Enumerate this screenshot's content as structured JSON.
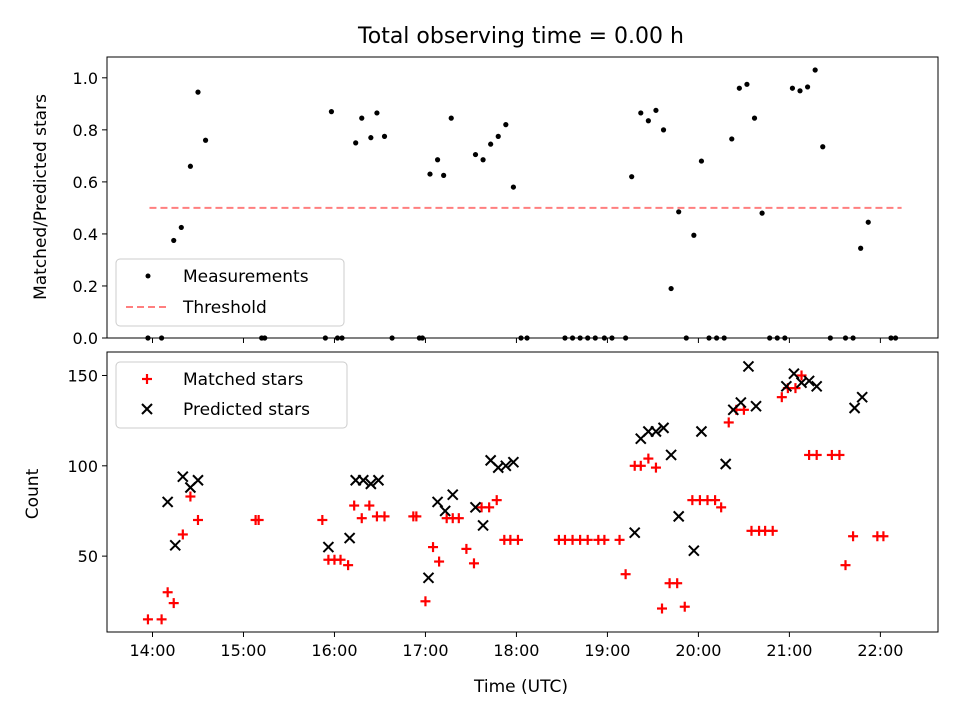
{
  "title": "Total observing time = 0.00 h",
  "colors": {
    "measure": "#000000",
    "threshold": "#ff7f7f",
    "matched": "#ff0000",
    "predicted": "#000000"
  },
  "chart_data": [
    {
      "type": "scatter",
      "ylabel": "Matched/Predicted stars",
      "ylim": [
        0,
        1.08
      ],
      "xlim": [
        "13:30",
        "22:38"
      ],
      "yticks": [
        "0.0",
        "0.2",
        "0.4",
        "0.6",
        "0.8",
        "1.0"
      ],
      "legend_position": "lower-left",
      "series": [
        {
          "name": "Measurements",
          "marker": "dot",
          "points": [
            [
              "13:57",
              0
            ],
            [
              "14:06",
              0
            ],
            [
              "14:14",
              0.375
            ],
            [
              "14:19",
              0.425
            ],
            [
              "14:25",
              0.66
            ],
            [
              "14:30",
              0.945
            ],
            [
              "14:35",
              0.76
            ],
            [
              "15:12",
              0
            ],
            [
              "15:14",
              0
            ],
            [
              "15:54",
              0
            ],
            [
              "15:58",
              0.87
            ],
            [
              "16:02",
              0
            ],
            [
              "16:05",
              0
            ],
            [
              "16:14",
              0.75
            ],
            [
              "16:18",
              0.845
            ],
            [
              "16:24",
              0.77
            ],
            [
              "16:28",
              0.865
            ],
            [
              "16:33",
              0.775
            ],
            [
              "16:38",
              0
            ],
            [
              "16:56",
              0
            ],
            [
              "16:58",
              0
            ],
            [
              "17:03",
              0.63
            ],
            [
              "17:08",
              0.685
            ],
            [
              "17:12",
              0.625
            ],
            [
              "17:17",
              0.845
            ],
            [
              "17:33",
              0.705
            ],
            [
              "17:38",
              0.685
            ],
            [
              "17:43",
              0.745
            ],
            [
              "17:48",
              0.775
            ],
            [
              "17:53",
              0.82
            ],
            [
              "17:58",
              0.58
            ],
            [
              "18:03",
              0
            ],
            [
              "18:07",
              0
            ],
            [
              "18:32",
              0
            ],
            [
              "18:37",
              0
            ],
            [
              "18:42",
              0
            ],
            [
              "18:47",
              0
            ],
            [
              "18:52",
              0
            ],
            [
              "18:58",
              0
            ],
            [
              "19:03",
              0
            ],
            [
              "19:12",
              0
            ],
            [
              "19:16",
              0.62
            ],
            [
              "19:22",
              0.865
            ],
            [
              "19:27",
              0.835
            ],
            [
              "19:32",
              0.875
            ],
            [
              "19:37",
              0.8
            ],
            [
              "19:42",
              0.19
            ],
            [
              "19:47",
              0.485
            ],
            [
              "19:52",
              0
            ],
            [
              "19:57",
              0.395
            ],
            [
              "20:02",
              0.68
            ],
            [
              "20:07",
              0
            ],
            [
              "20:12",
              0
            ],
            [
              "20:17",
              0
            ],
            [
              "20:22",
              0.765
            ],
            [
              "20:27",
              0.96
            ],
            [
              "20:32",
              0.975
            ],
            [
              "20:37",
              0.845
            ],
            [
              "20:42",
              0.48
            ],
            [
              "20:47",
              0
            ],
            [
              "20:52",
              0
            ],
            [
              "20:57",
              0
            ],
            [
              "21:02",
              0.96
            ],
            [
              "21:07",
              0.95
            ],
            [
              "21:12",
              0.965
            ],
            [
              "21:17",
              1.03
            ],
            [
              "21:22",
              0.735
            ],
            [
              "21:27",
              0
            ],
            [
              "21:37",
              0
            ],
            [
              "21:42",
              0
            ],
            [
              "21:47",
              0.345
            ],
            [
              "21:52",
              0.445
            ],
            [
              "22:07",
              0
            ],
            [
              "22:10",
              0
            ]
          ]
        },
        {
          "name": "Threshold",
          "line": "dashed",
          "y": 0.5,
          "x": [
            "13:58",
            "22:14"
          ]
        }
      ]
    },
    {
      "type": "scatter",
      "xlabel": "Time (UTC)",
      "ylabel": "Count",
      "ylim": [
        8,
        163
      ],
      "xlim": [
        "13:30",
        "22:38"
      ],
      "xticks": [
        "14:00",
        "15:00",
        "16:00",
        "17:00",
        "18:00",
        "19:00",
        "20:00",
        "21:00",
        "22:00"
      ],
      "yticks": [
        "50",
        "100",
        "150"
      ],
      "legend_position": "upper-left",
      "series": [
        {
          "name": "Matched stars",
          "marker": "plus",
          "points": [
            [
              "13:57",
              15
            ],
            [
              "14:06",
              15
            ],
            [
              "14:10",
              30
            ],
            [
              "14:14",
              24
            ],
            [
              "14:20",
              62
            ],
            [
              "14:25",
              83
            ],
            [
              "14:30",
              70
            ],
            [
              "15:08",
              70
            ],
            [
              "15:10",
              70
            ],
            [
              "15:52",
              70
            ],
            [
              "15:56",
              48
            ],
            [
              "16:00",
              48
            ],
            [
              "16:04",
              48
            ],
            [
              "16:09",
              45
            ],
            [
              "16:13",
              78
            ],
            [
              "16:18",
              71
            ],
            [
              "16:23",
              78
            ],
            [
              "16:28",
              72
            ],
            [
              "16:33",
              72
            ],
            [
              "16:52",
              72
            ],
            [
              "16:54",
              72
            ],
            [
              "17:00",
              25
            ],
            [
              "17:05",
              55
            ],
            [
              "17:09",
              47
            ],
            [
              "17:14",
              71
            ],
            [
              "17:18",
              71
            ],
            [
              "17:22",
              71
            ],
            [
              "17:27",
              54
            ],
            [
              "17:32",
              46
            ],
            [
              "17:37",
              77
            ],
            [
              "17:42",
              77
            ],
            [
              "17:47",
              81
            ],
            [
              "17:52",
              59
            ],
            [
              "17:56",
              59
            ],
            [
              "18:01",
              59
            ],
            [
              "18:28",
              59
            ],
            [
              "18:32",
              59
            ],
            [
              "18:37",
              59
            ],
            [
              "18:42",
              59
            ],
            [
              "18:47",
              59
            ],
            [
              "18:54",
              59
            ],
            [
              "18:58",
              59
            ],
            [
              "19:08",
              59
            ],
            [
              "19:12",
              40
            ],
            [
              "19:18",
              100
            ],
            [
              "19:22",
              100
            ],
            [
              "19:27",
              104
            ],
            [
              "19:32",
              99
            ],
            [
              "19:36",
              21
            ],
            [
              "19:41",
              35
            ],
            [
              "19:46",
              35
            ],
            [
              "19:51",
              22
            ],
            [
              "19:56",
              81
            ],
            [
              "20:01",
              81
            ],
            [
              "20:06",
              81
            ],
            [
              "20:11",
              81
            ],
            [
              "20:15",
              77
            ],
            [
              "20:20",
              124
            ],
            [
              "20:25",
              131
            ],
            [
              "20:30",
              131
            ],
            [
              "20:35",
              64
            ],
            [
              "20:40",
              64
            ],
            [
              "20:44",
              64
            ],
            [
              "20:49",
              64
            ],
            [
              "20:55",
              138
            ],
            [
              "20:59",
              143
            ],
            [
              "21:04",
              143
            ],
            [
              "21:08",
              150
            ],
            [
              "21:13",
              106
            ],
            [
              "21:18",
              106
            ],
            [
              "21:28",
              106
            ],
            [
              "21:33",
              106
            ],
            [
              "21:37",
              45
            ],
            [
              "21:42",
              61
            ],
            [
              "21:58",
              61
            ],
            [
              "22:02",
              61
            ]
          ]
        },
        {
          "name": "Predicted stars",
          "marker": "x",
          "points": [
            [
              "14:10",
              80
            ],
            [
              "14:15",
              56
            ],
            [
              "14:20",
              94
            ],
            [
              "14:25",
              88
            ],
            [
              "14:30",
              92
            ],
            [
              "15:56",
              55
            ],
            [
              "16:10",
              60
            ],
            [
              "16:14",
              92
            ],
            [
              "16:19",
              92
            ],
            [
              "16:24",
              90
            ],
            [
              "16:29",
              92
            ],
            [
              "17:02",
              38
            ],
            [
              "17:08",
              80
            ],
            [
              "17:13",
              75
            ],
            [
              "17:18",
              84
            ],
            [
              "17:33",
              77
            ],
            [
              "17:38",
              67
            ],
            [
              "17:43",
              103
            ],
            [
              "17:48",
              99
            ],
            [
              "17:53",
              100
            ],
            [
              "17:58",
              102
            ],
            [
              "19:18",
              63
            ],
            [
              "19:22",
              115
            ],
            [
              "19:27",
              119
            ],
            [
              "19:32",
              119
            ],
            [
              "19:37",
              121
            ],
            [
              "19:42",
              106
            ],
            [
              "19:47",
              72
            ],
            [
              "19:57",
              53
            ],
            [
              "20:02",
              119
            ],
            [
              "20:18",
              101
            ],
            [
              "20:23",
              131
            ],
            [
              "20:28",
              135
            ],
            [
              "20:33",
              155
            ],
            [
              "20:38",
              133
            ],
            [
              "20:58",
              144
            ],
            [
              "21:03",
              151
            ],
            [
              "21:08",
              146
            ],
            [
              "21:13",
              147
            ],
            [
              "21:18",
              144
            ],
            [
              "21:43",
              132
            ],
            [
              "21:48",
              138
            ]
          ]
        }
      ]
    }
  ]
}
